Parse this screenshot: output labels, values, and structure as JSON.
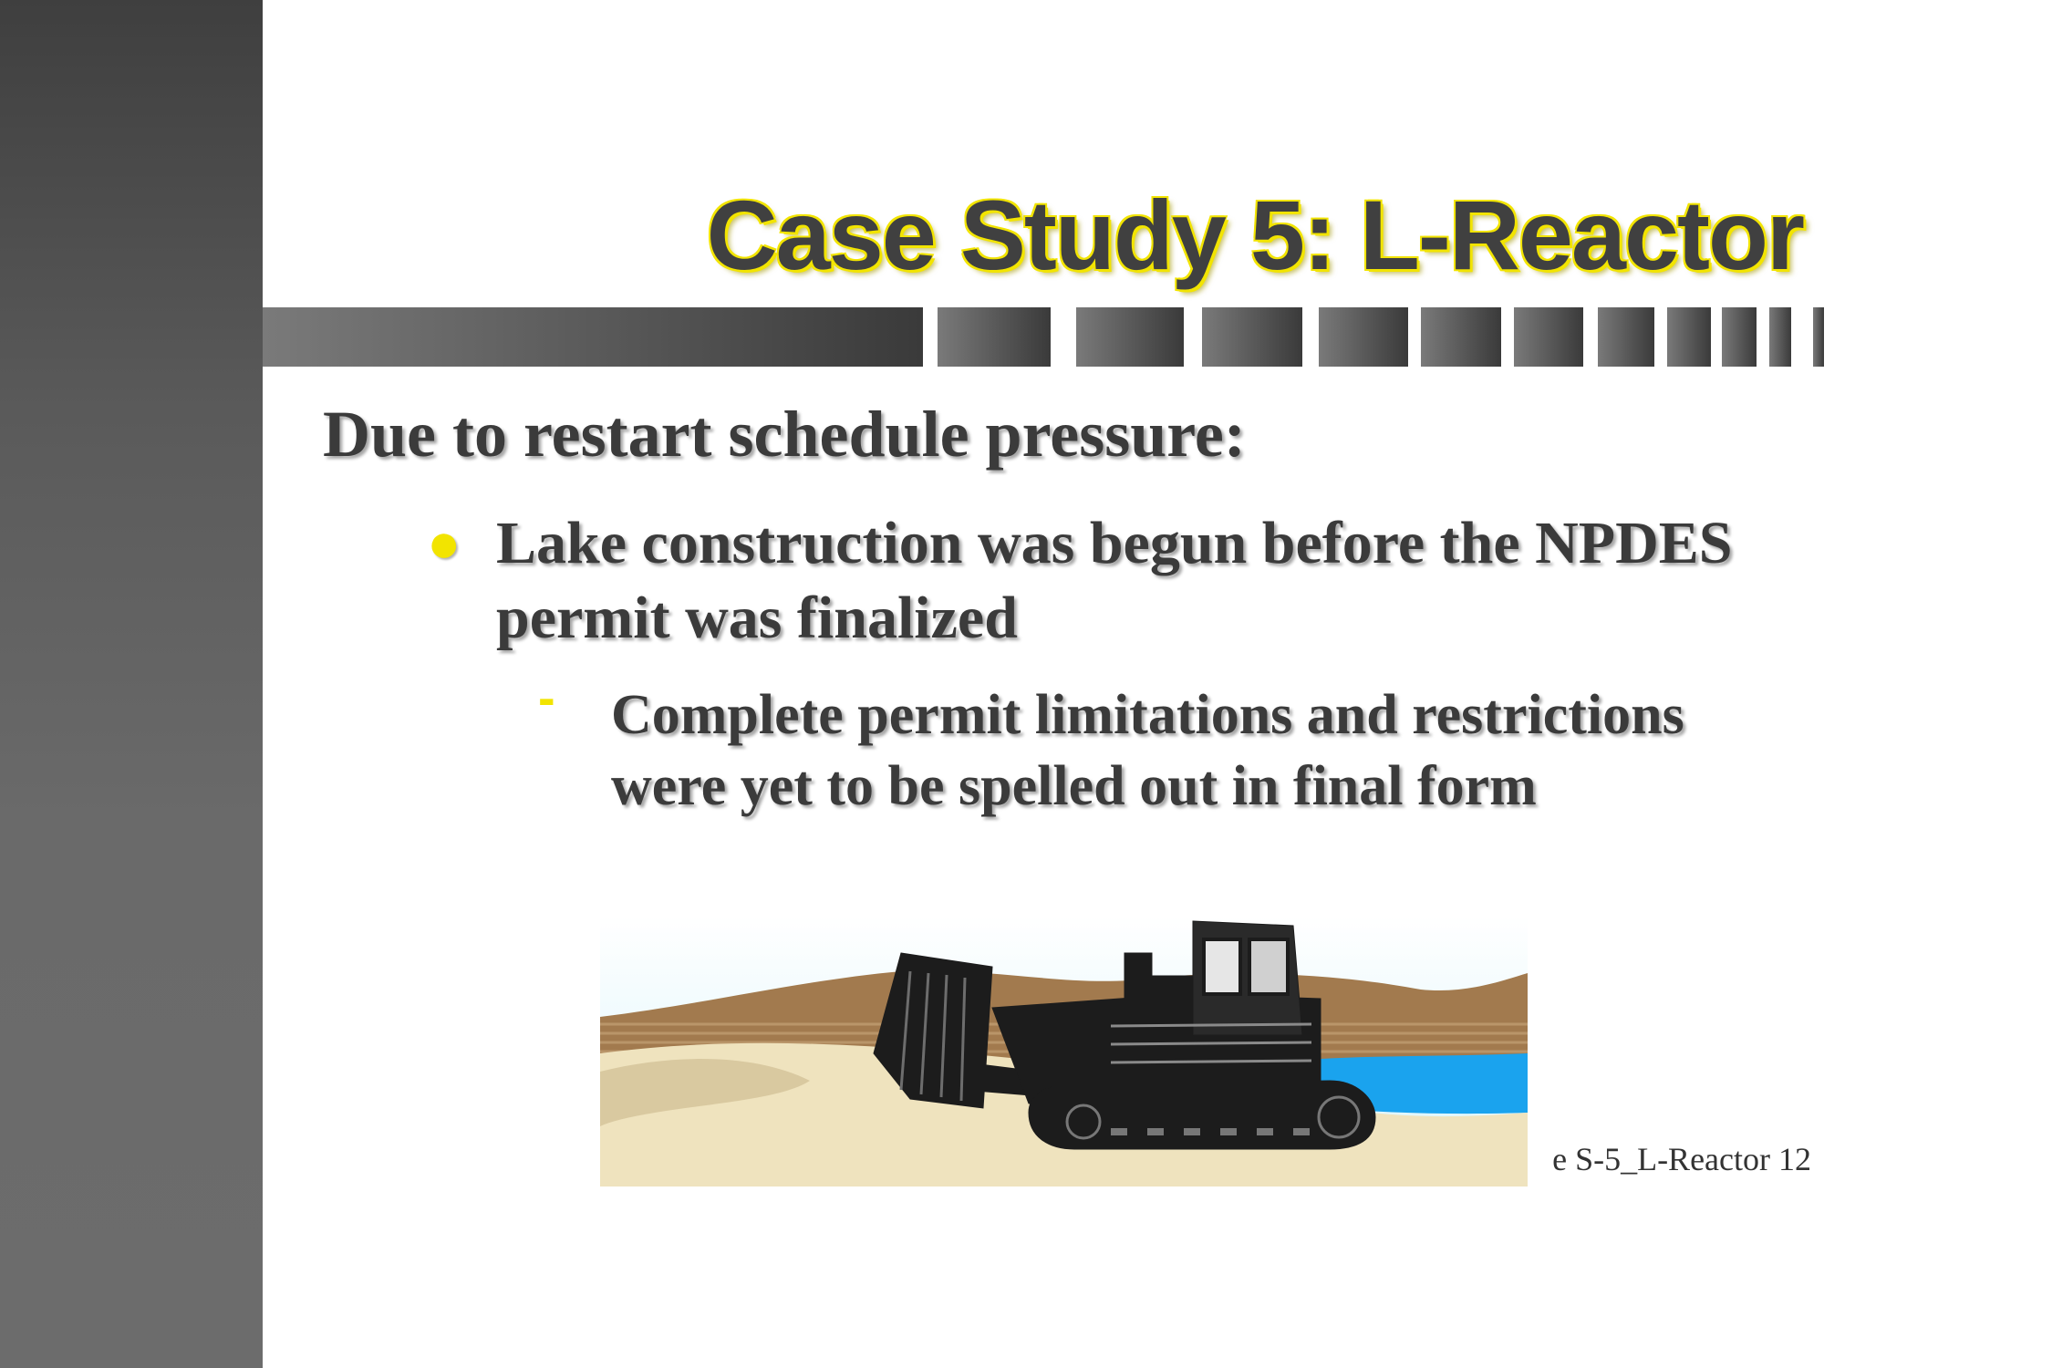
{
  "slide": {
    "title": "Case Study 5: L-Reactor",
    "heading": "Due to restart schedule pressure:",
    "bullets": [
      {
        "text": "Lake construction was begun before the NPDES permit was finalized",
        "sub": [
          {
            "text": "Complete permit limitations and restrictions were yet to be spelled out in final form"
          }
        ]
      }
    ],
    "footer": "e S-5_L-Reactor 12"
  },
  "icons": {
    "bullet": "yellow-dot-bullet",
    "sub_bullet": "yellow-dash-bullet",
    "picture": "bulldozer-clipart"
  },
  "colors": {
    "title_glow": "#f2e400",
    "text": "#3b3b3b",
    "side_bar": "#5a5a5a",
    "sky": "#dff6fb",
    "water": "#1aa3ee",
    "sand": "#efe3be",
    "hills": "#a27a4e"
  }
}
